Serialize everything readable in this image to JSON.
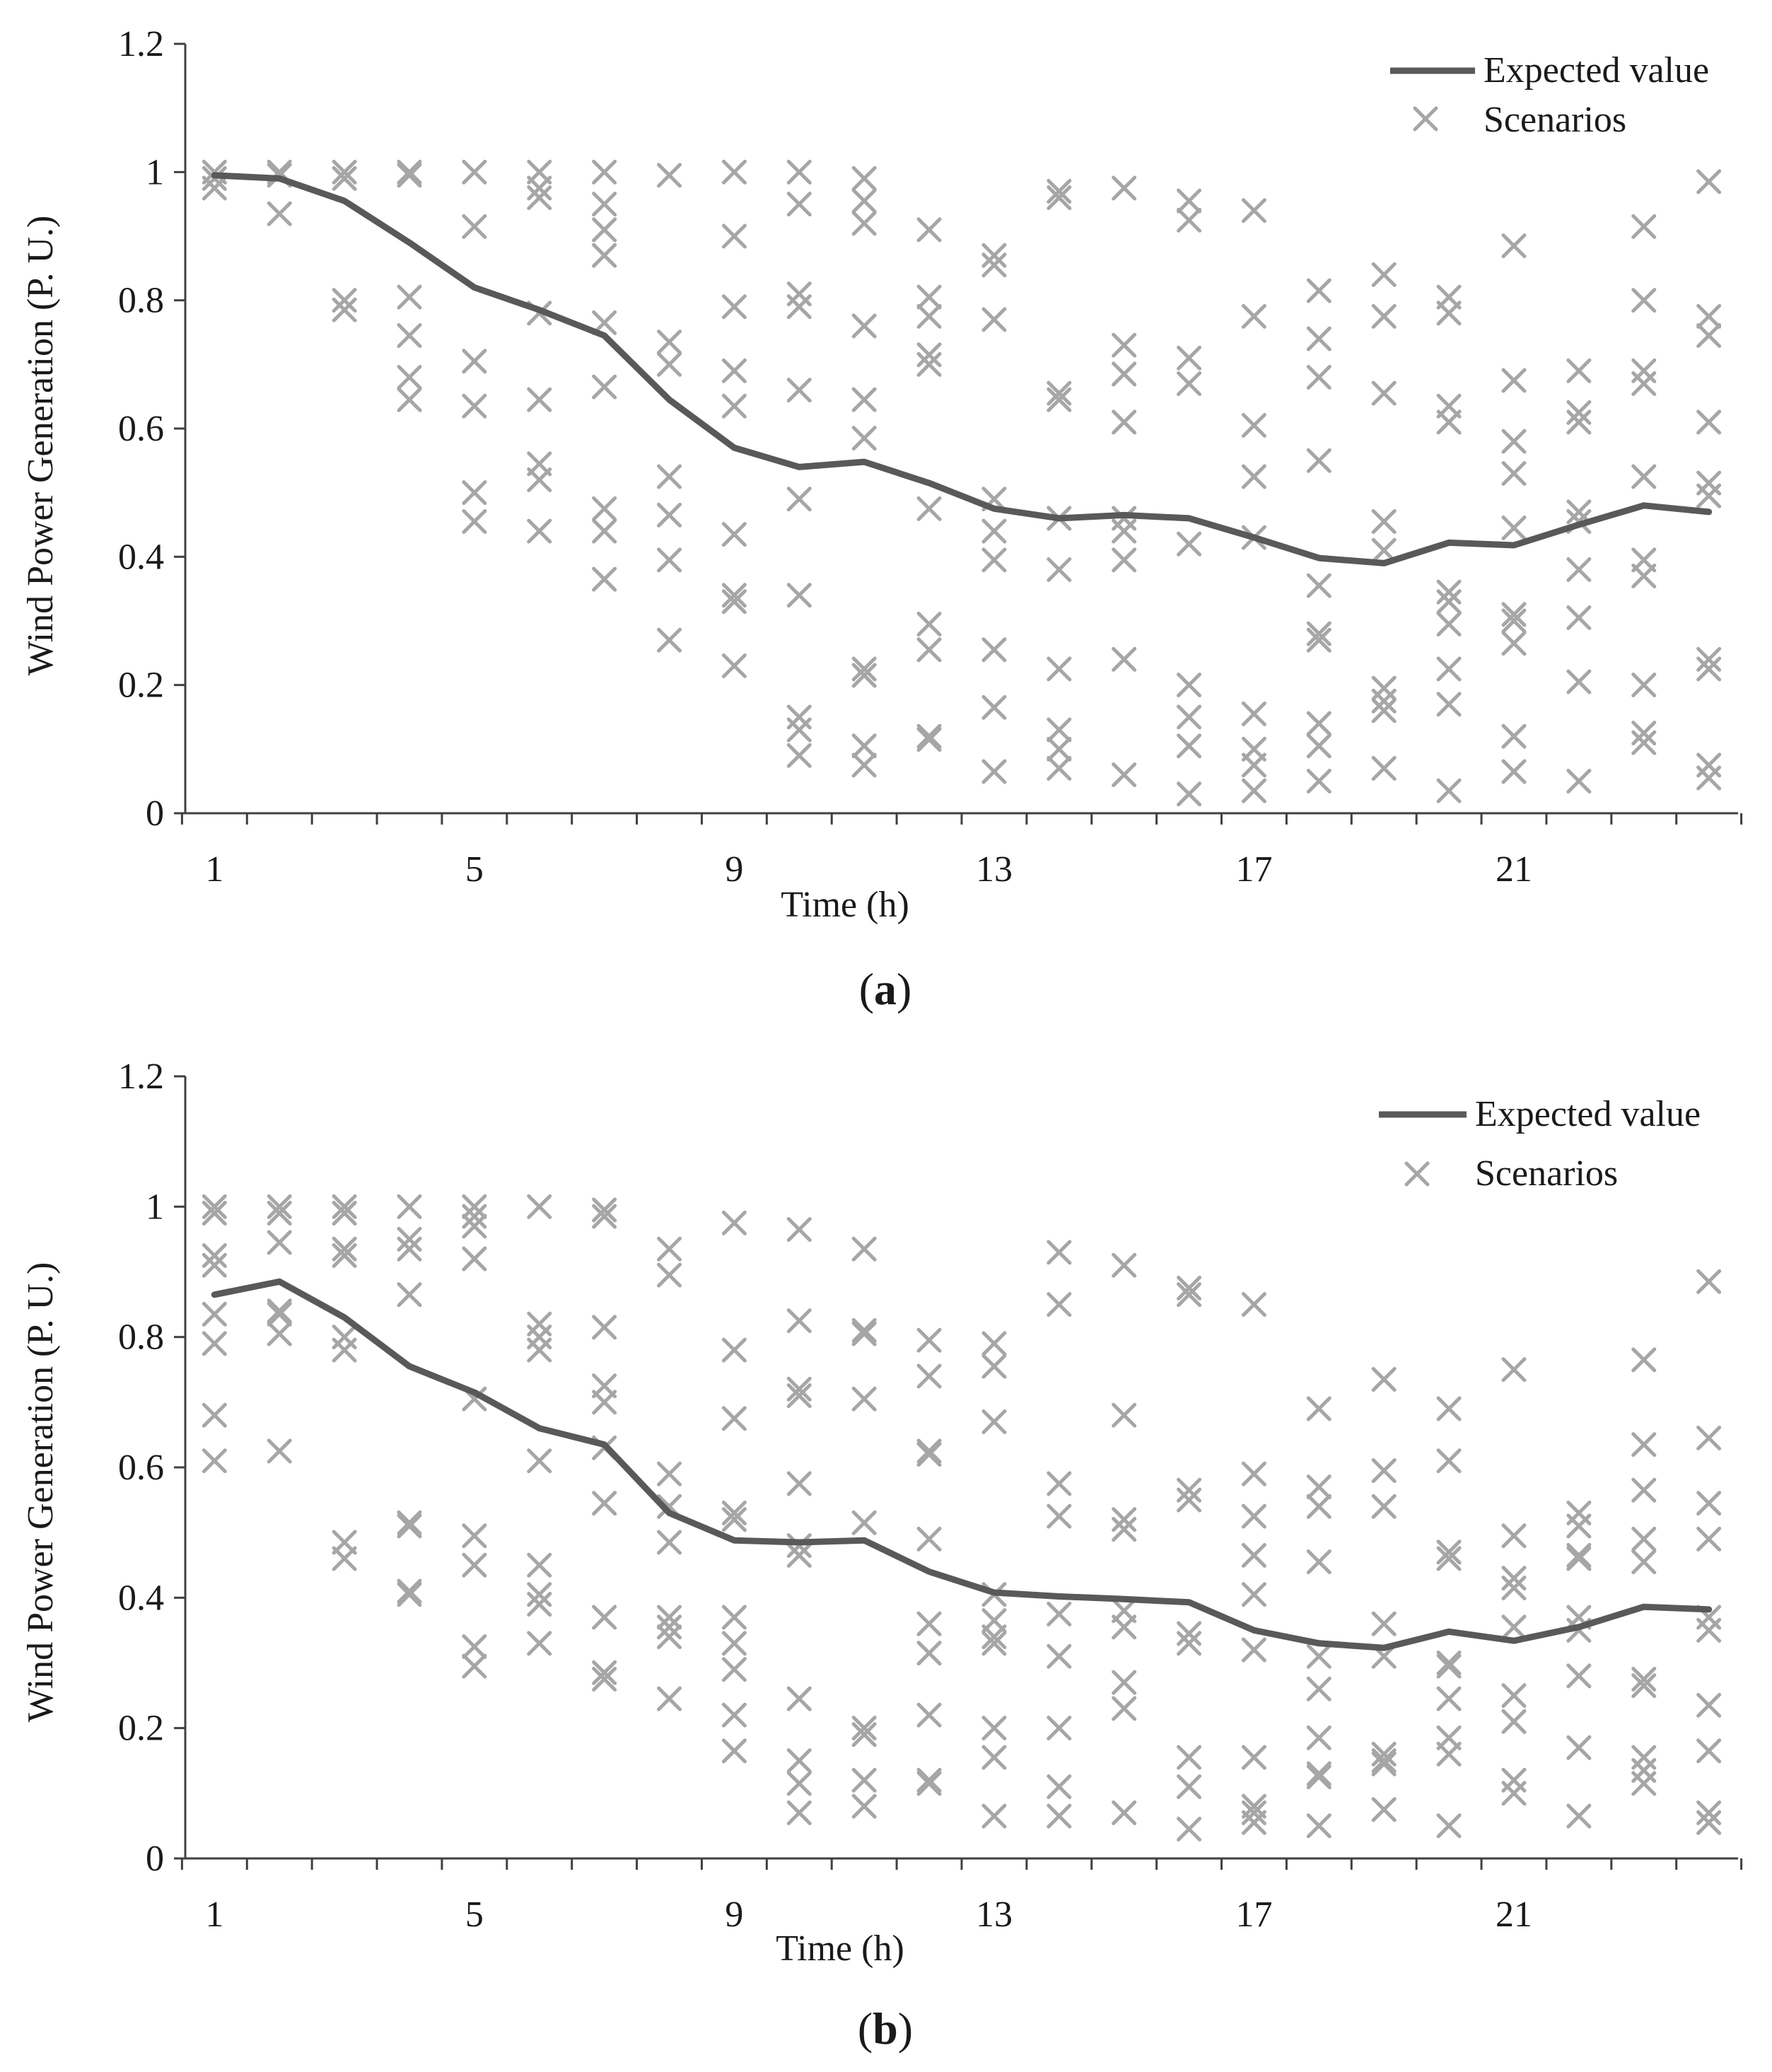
{
  "colors": {
    "expected_line": "#595959",
    "scenario_marker": "#a6a6a6",
    "axis": "#404040",
    "text": "#1a1a1a"
  },
  "chart_data": [
    {
      "panel": "a",
      "panel_label": "(a)",
      "type": "line",
      "xlabel": "Time (h)",
      "ylabel": "Wind Power Generation (P. U.)",
      "xlim": [
        1,
        24
      ],
      "ylim": [
        0,
        1.2
      ],
      "x_ticks": [
        1,
        5,
        9,
        13,
        17,
        21
      ],
      "y_ticks": [
        0,
        0.2,
        0.4,
        0.6,
        0.8,
        1,
        1.2
      ],
      "y_tick_labels": [
        "0",
        "0.2",
        "0.4",
        "0.6",
        "0.8",
        "1",
        "1.2"
      ],
      "legend": [
        "Expected value",
        "Scenarios"
      ],
      "series": [
        {
          "name": "Expected value",
          "kind": "line",
          "x": [
            1,
            2,
            3,
            4,
            5,
            6,
            7,
            8,
            9,
            10,
            11,
            12,
            13,
            14,
            15,
            16,
            17,
            18,
            19,
            20,
            21,
            22,
            23,
            24
          ],
          "values": [
            0.995,
            0.99,
            0.955,
            0.89,
            0.82,
            0.785,
            0.745,
            0.645,
            0.57,
            0.54,
            0.548,
            0.515,
            0.475,
            0.46,
            0.465,
            0.46,
            0.43,
            0.398,
            0.39,
            0.422,
            0.418,
            0.45,
            0.48,
            0.47
          ]
        },
        {
          "name": "Scenarios",
          "kind": "scatter",
          "points": [
            [
              1,
              [
                1.0,
                0.99,
                0.975
              ]
            ],
            [
              2,
              [
                1.0,
                0.995,
                0.935
              ]
            ],
            [
              3,
              [
                1.0,
                0.99,
                0.8,
                0.785
              ]
            ],
            [
              4,
              [
                1.0,
                0.995,
                0.805,
                0.745,
                0.68,
                0.645
              ]
            ],
            [
              5,
              [
                1.0,
                0.915,
                0.705,
                0.635,
                0.5,
                0.455
              ]
            ],
            [
              6,
              [
                1.0,
                0.975,
                0.96,
                0.78,
                0.645,
                0.545,
                0.52,
                0.44
              ]
            ],
            [
              7,
              [
                1.0,
                0.95,
                0.91,
                0.87,
                0.765,
                0.665,
                0.475,
                0.44,
                0.365
              ]
            ],
            [
              8,
              [
                0.995,
                0.735,
                0.7,
                0.525,
                0.465,
                0.395,
                0.27
              ]
            ],
            [
              9,
              [
                1.0,
                0.9,
                0.79,
                0.69,
                0.635,
                0.435,
                0.34,
                0.33,
                0.23
              ]
            ],
            [
              10,
              [
                1.0,
                0.95,
                0.81,
                0.79,
                0.66,
                0.49,
                0.34,
                0.15,
                0.13,
                0.09
              ]
            ],
            [
              11,
              [
                0.99,
                0.955,
                0.92,
                0.76,
                0.645,
                0.585,
                0.225,
                0.215,
                0.105,
                0.075
              ]
            ],
            [
              12,
              [
                0.91,
                0.805,
                0.775,
                0.715,
                0.7,
                0.475,
                0.295,
                0.255,
                0.12,
                0.115
              ]
            ],
            [
              13,
              [
                0.87,
                0.855,
                0.77,
                0.49,
                0.44,
                0.395,
                0.255,
                0.165,
                0.065
              ]
            ],
            [
              14,
              [
                0.97,
                0.96,
                0.655,
                0.645,
                0.46,
                0.38,
                0.225,
                0.13,
                0.1,
                0.07
              ]
            ],
            [
              15,
              [
                0.975,
                0.73,
                0.685,
                0.61,
                0.46,
                0.44,
                0.395,
                0.24,
                0.06
              ]
            ],
            [
              16,
              [
                0.955,
                0.925,
                0.71,
                0.67,
                0.42,
                0.2,
                0.15,
                0.105,
                0.03
              ]
            ],
            [
              17,
              [
                0.94,
                0.775,
                0.605,
                0.525,
                0.43,
                0.155,
                0.1,
                0.075,
                0.035
              ]
            ],
            [
              18,
              [
                0.815,
                0.74,
                0.68,
                0.55,
                0.355,
                0.28,
                0.27,
                0.14,
                0.105,
                0.05
              ]
            ],
            [
              19,
              [
                0.84,
                0.775,
                0.655,
                0.455,
                0.41,
                0.195,
                0.175,
                0.16,
                0.07
              ]
            ],
            [
              20,
              [
                0.805,
                0.78,
                0.635,
                0.61,
                0.345,
                0.33,
                0.295,
                0.225,
                0.17,
                0.035
              ]
            ],
            [
              21,
              [
                0.885,
                0.675,
                0.58,
                0.53,
                0.445,
                0.31,
                0.3,
                0.265,
                0.12,
                0.065
              ]
            ],
            [
              22,
              [
                0.69,
                0.625,
                0.61,
                0.47,
                0.455,
                0.38,
                0.305,
                0.205,
                0.05
              ]
            ],
            [
              23,
              [
                0.915,
                0.8,
                0.69,
                0.67,
                0.525,
                0.395,
                0.37,
                0.2,
                0.125,
                0.11
              ]
            ],
            [
              24,
              [
                0.985,
                0.775,
                0.745,
                0.61,
                0.515,
                0.495,
                0.24,
                0.225,
                0.075,
                0.055
              ]
            ]
          ]
        }
      ]
    },
    {
      "panel": "b",
      "panel_label": "(b)",
      "type": "line",
      "xlabel": "Time (h)",
      "ylabel": "Wind Power Generation (P. U.)",
      "xlim": [
        1,
        24
      ],
      "ylim": [
        0,
        1.2
      ],
      "x_ticks": [
        1,
        5,
        9,
        13,
        17,
        21
      ],
      "y_ticks": [
        0,
        0.2,
        0.4,
        0.6,
        0.8,
        1,
        1.2
      ],
      "y_tick_labels": [
        "0",
        "0.2",
        "0.4",
        "0.6",
        "0.8",
        "1",
        "1.2"
      ],
      "legend": [
        "Expected value",
        "Scenarios"
      ],
      "series": [
        {
          "name": "Expected value",
          "kind": "line",
          "x": [
            1,
            2,
            3,
            4,
            5,
            6,
            7,
            8,
            9,
            10,
            11,
            12,
            13,
            14,
            15,
            16,
            17,
            18,
            19,
            20,
            21,
            22,
            23,
            24
          ],
          "values": [
            0.865,
            0.885,
            0.83,
            0.755,
            0.715,
            0.66,
            0.635,
            0.53,
            0.488,
            0.485,
            0.488,
            0.44,
            0.408,
            0.402,
            0.398,
            0.393,
            0.35,
            0.33,
            0.323,
            0.348,
            0.334,
            0.355,
            0.386,
            0.382
          ]
        },
        {
          "name": "Scenarios",
          "kind": "scatter",
          "points": [
            [
              1,
              [
                1.0,
                0.99,
                0.925,
                0.91,
                0.835,
                0.79,
                0.68,
                0.61
              ]
            ],
            [
              2,
              [
                1.0,
                0.99,
                0.945,
                0.84,
                0.835,
                0.805,
                0.625
              ]
            ],
            [
              3,
              [
                1.0,
                0.99,
                0.935,
                0.925,
                0.8,
                0.78,
                0.485,
                0.46
              ]
            ],
            [
              4,
              [
                1.0,
                0.95,
                0.935,
                0.865,
                0.515,
                0.51,
                0.41,
                0.405
              ]
            ],
            [
              5,
              [
                1.0,
                0.985,
                0.97,
                0.92,
                0.705,
                0.495,
                0.45,
                0.325,
                0.295
              ]
            ],
            [
              6,
              [
                1.0,
                0.82,
                0.8,
                0.78,
                0.61,
                0.45,
                0.405,
                0.39,
                0.33
              ]
            ],
            [
              7,
              [
                0.995,
                0.985,
                0.815,
                0.725,
                0.7,
                0.63,
                0.545,
                0.37,
                0.285,
                0.275
              ]
            ],
            [
              8,
              [
                0.935,
                0.895,
                0.59,
                0.54,
                0.485,
                0.37,
                0.355,
                0.34,
                0.245
              ]
            ],
            [
              9,
              [
                0.975,
                0.78,
                0.675,
                0.53,
                0.52,
                0.37,
                0.33,
                0.29,
                0.22,
                0.165
              ]
            ],
            [
              10,
              [
                0.965,
                0.825,
                0.72,
                0.71,
                0.575,
                0.48,
                0.465,
                0.245,
                0.15,
                0.115,
                0.07
              ]
            ],
            [
              11,
              [
                0.935,
                0.81,
                0.805,
                0.705,
                0.515,
                0.2,
                0.19,
                0.12,
                0.08
              ]
            ],
            [
              12,
              [
                0.795,
                0.74,
                0.625,
                0.62,
                0.49,
                0.36,
                0.315,
                0.22,
                0.12,
                0.115
              ]
            ],
            [
              13,
              [
                0.79,
                0.755,
                0.67,
                0.405,
                0.365,
                0.34,
                0.33,
                0.2,
                0.155,
                0.065
              ]
            ],
            [
              14,
              [
                0.93,
                0.85,
                0.575,
                0.525,
                0.375,
                0.31,
                0.2,
                0.11,
                0.065
              ]
            ],
            [
              15,
              [
                0.91,
                0.68,
                0.52,
                0.505,
                0.38,
                0.355,
                0.27,
                0.23,
                0.07
              ]
            ],
            [
              16,
              [
                0.875,
                0.865,
                0.565,
                0.55,
                0.345,
                0.33,
                0.155,
                0.11,
                0.045
              ]
            ],
            [
              17,
              [
                0.85,
                0.59,
                0.525,
                0.465,
                0.405,
                0.32,
                0.155,
                0.08,
                0.07,
                0.055
              ]
            ],
            [
              18,
              [
                0.69,
                0.57,
                0.54,
                0.455,
                0.31,
                0.26,
                0.185,
                0.13,
                0.125,
                0.05
              ]
            ],
            [
              19,
              [
                0.735,
                0.595,
                0.54,
                0.36,
                0.31,
                0.16,
                0.15,
                0.145,
                0.075
              ]
            ],
            [
              20,
              [
                0.69,
                0.61,
                0.47,
                0.46,
                0.3,
                0.295,
                0.245,
                0.185,
                0.16,
                0.05
              ]
            ],
            [
              21,
              [
                0.75,
                0.495,
                0.43,
                0.415,
                0.355,
                0.25,
                0.21,
                0.12,
                0.1
              ]
            ],
            [
              22,
              [
                0.53,
                0.51,
                0.465,
                0.46,
                0.37,
                0.35,
                0.28,
                0.17,
                0.065
              ]
            ],
            [
              23,
              [
                0.765,
                0.635,
                0.565,
                0.49,
                0.455,
                0.275,
                0.265,
                0.155,
                0.135,
                0.115
              ]
            ],
            [
              24,
              [
                0.885,
                0.645,
                0.545,
                0.49,
                0.37,
                0.35,
                0.235,
                0.165,
                0.07,
                0.055
              ]
            ]
          ]
        }
      ]
    }
  ]
}
